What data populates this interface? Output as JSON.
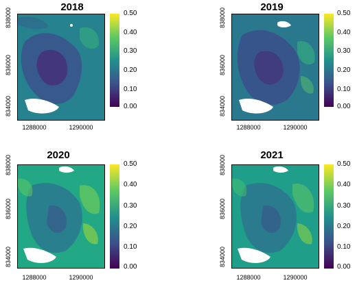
{
  "panels": [
    {
      "title": "2018",
      "x_ticks": [
        "1288000",
        "1290000"
      ],
      "y_ticks": [
        "838000",
        "836000",
        "834000"
      ]
    },
    {
      "title": "2019",
      "x_ticks": [
        "1288000",
        "1290000"
      ],
      "y_ticks": [
        "838000",
        "836000",
        "834000"
      ]
    },
    {
      "title": "2020",
      "x_ticks": [
        "1288000",
        "1290000"
      ],
      "y_ticks": [
        "838000",
        "836000",
        "834000"
      ]
    },
    {
      "title": "2021",
      "x_ticks": [
        "1288000",
        "1290000"
      ],
      "y_ticks": [
        "838000",
        "836000",
        "834000"
      ]
    }
  ],
  "colorbar": {
    "labels": [
      "0.50",
      "0.40",
      "0.30",
      "0.20",
      "0.10",
      "0.00"
    ],
    "palette": [
      "#440154",
      "#3b528b",
      "#21918c",
      "#5ec962",
      "#fde725"
    ]
  }
}
